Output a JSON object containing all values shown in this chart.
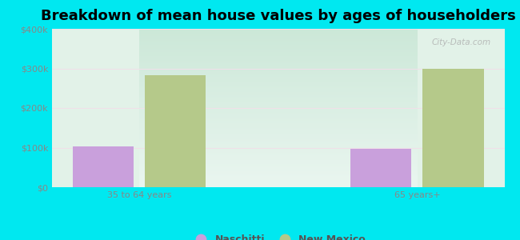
{
  "title": "Breakdown of mean house values by ages of householders",
  "categories": [
    "35 to 64 years",
    "65 years+"
  ],
  "naschitti_values": [
    103000,
    97000
  ],
  "newmexico_values": [
    282000,
    300000
  ],
  "naschitti_color": "#c9a0dc",
  "newmexico_color": "#b5c98a",
  "background_color": "#00e8f0",
  "plot_bg_top": "#d8efe0",
  "plot_bg_bottom": "#e8f8ee",
  "grid_color": "#e0e8e0",
  "ylim": [
    0,
    400000
  ],
  "yticks": [
    0,
    100000,
    200000,
    300000,
    400000
  ],
  "ytick_labels": [
    "$0",
    "$100k",
    "$200k",
    "$300k",
    "$400k"
  ],
  "legend_naschitti": "Naschitti",
  "legend_newmexico": "New Mexico",
  "bar_width": 0.22,
  "title_fontsize": 13,
  "tick_fontsize": 8,
  "watermark": "City-Data.com"
}
